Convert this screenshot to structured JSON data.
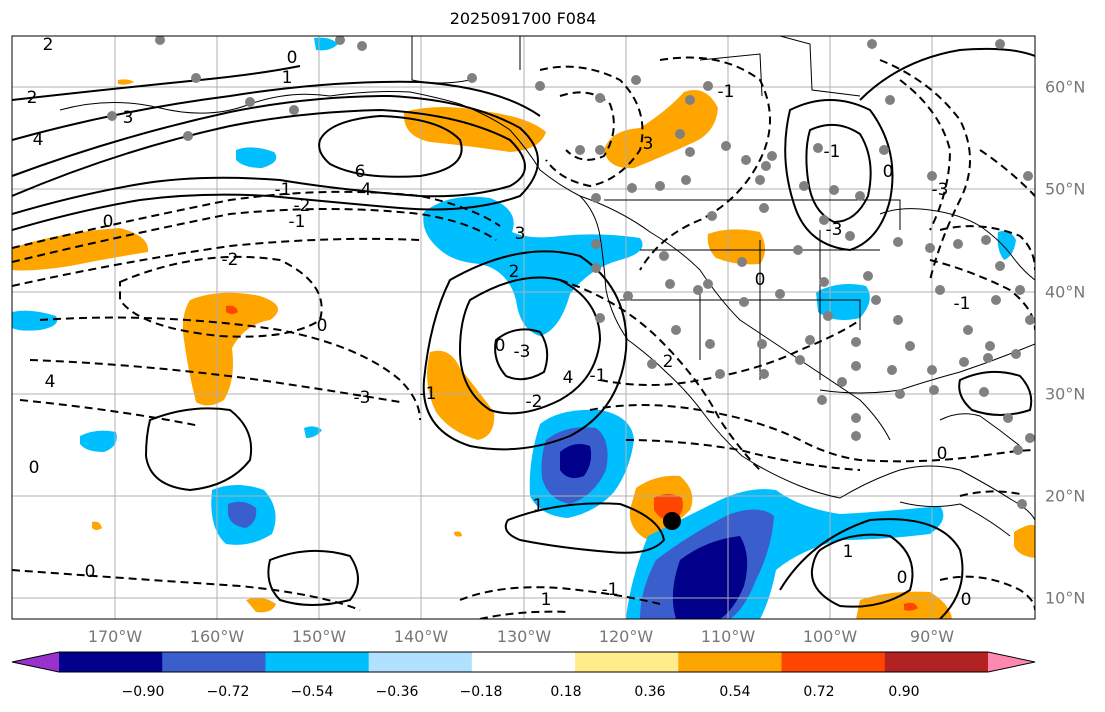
{
  "title": "2025091700 F084",
  "lon_labels": [
    "170°W",
    "160°W",
    "150°W",
    "140°W",
    "130°W",
    "120°W",
    "110°W",
    "100°W",
    "90°W"
  ],
  "lat_labels": [
    "60°N",
    "50°N",
    "40°N",
    "30°N",
    "20°N",
    "10°N"
  ],
  "colorbar": {
    "tick_labels": [
      "−0.90",
      "−0.72",
      "−0.54",
      "−0.36",
      "−0.18",
      "0.18",
      "0.36",
      "0.54",
      "0.72",
      "0.90"
    ],
    "colors": [
      "#9932cc",
      "#00008b",
      "#3a5fcd",
      "#00bfff",
      "#b0e2ff",
      "#ffffff",
      "#ffec8b",
      "#ffa500",
      "#ff4500",
      "#b22222",
      "#ff88b0"
    ]
  },
  "contour_labels": [
    "2",
    "0",
    "1",
    "2",
    "3",
    "4",
    "-1",
    "-2",
    "6",
    "4",
    "2",
    "0",
    "-1",
    "-2",
    "0",
    "4",
    "-3",
    "-1",
    "0",
    "0",
    "0",
    "-3",
    "-2",
    "4",
    "3",
    "2",
    "-1",
    "0",
    "0",
    "-1",
    "1",
    "1",
    "-3",
    "0",
    "-1",
    "0",
    "3",
    "-1",
    "-3",
    "0",
    "-1",
    "1"
  ],
  "colors": {
    "contour": "#000000",
    "grid": "#b0b0b0",
    "coast": "#000000",
    "station": "#808080",
    "marker": "#000000"
  }
}
